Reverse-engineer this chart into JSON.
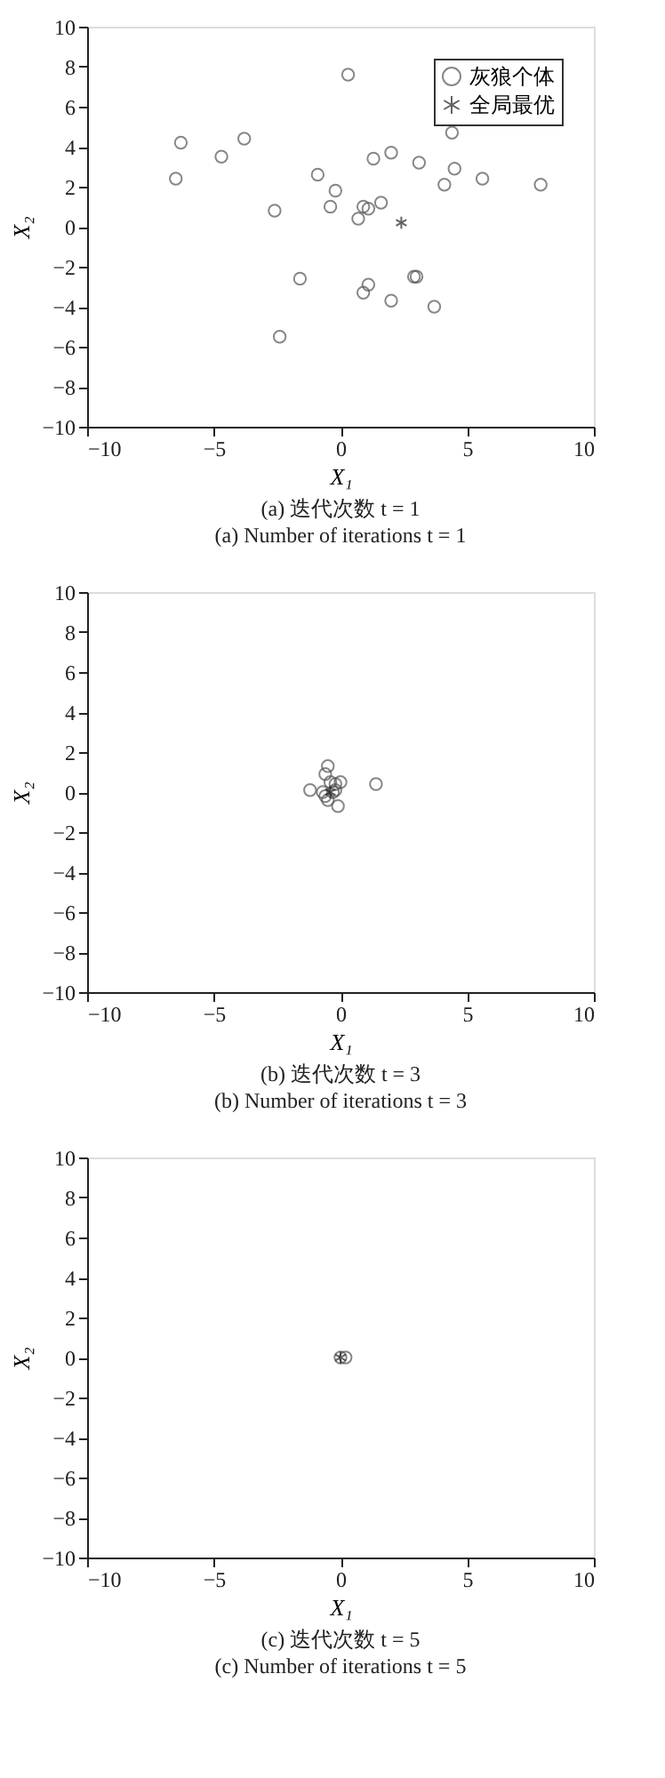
{
  "chart_data": [
    {
      "type": "scatter",
      "xlabel": "X₁",
      "ylabel": "X₂",
      "xlim": [
        -10,
        10
      ],
      "ylim": [
        -10,
        10
      ],
      "xticks": [
        -10,
        -5,
        0,
        5,
        10
      ],
      "yticks": [
        -10,
        -8,
        -6,
        -4,
        -2,
        0,
        2,
        4,
        6,
        8,
        10
      ],
      "grid": false,
      "legend": "top right",
      "annotations": [
        "(a) 迭代次数 t = 1",
        "(a) Number of iterations t = 1"
      ],
      "series": [
        {
          "name": "灰狼个体",
          "color": "#555555",
          "marker": "circle",
          "x": [
            0.3,
            -6.3,
            -3.8,
            -4.7,
            -6.5,
            -0.9,
            -0.2,
            -2.6,
            -0.4,
            0.7,
            0.9,
            1.1,
            1.6,
            1.3,
            2.0,
            3.1,
            4.4,
            4.5,
            4.1,
            5.6,
            7.9,
            -1.6,
            1.1,
            0.9,
            2.9,
            3.0,
            2.0,
            3.7,
            -2.4
          ],
          "values": [
            7.6,
            4.2,
            4.4,
            3.5,
            2.4,
            2.6,
            1.8,
            0.8,
            1.0,
            0.4,
            1.0,
            0.9,
            1.2,
            3.4,
            3.7,
            3.2,
            4.7,
            2.9,
            2.1,
            2.4,
            2.1,
            -2.6,
            -2.9,
            -3.3,
            -2.5,
            -2.5,
            -3.7,
            -4.0,
            -5.5
          ]
        },
        {
          "name": "全局最优",
          "color": "#222222",
          "marker": "cross",
          "x": [
            2.4
          ],
          "values": [
            0.2
          ]
        }
      ]
    },
    {
      "type": "scatter",
      "xlabel": "X₁",
      "ylabel": "X₂",
      "xlim": [
        -10,
        10
      ],
      "ylim": [
        -10,
        10
      ],
      "xticks": [
        -10,
        -5,
        0,
        5,
        10
      ],
      "yticks": [
        -10,
        -8,
        -6,
        -4,
        -2,
        0,
        2,
        4,
        6,
        8,
        10
      ],
      "grid": false,
      "legend": "top right",
      "annotations": [
        "(b) 迭代次数 t = 3",
        "(b) Number of iterations t = 3"
      ],
      "series": [
        {
          "name": "灰狼个体",
          "color": "#555555",
          "marker": "circle",
          "x": [
            -0.5,
            -0.6,
            -1.2,
            0.0,
            -0.2,
            -0.4,
            -0.1,
            1.4,
            -0.5,
            -0.3,
            -0.6,
            -0.2,
            -0.7
          ],
          "values": [
            1.3,
            0.9,
            0.1,
            0.5,
            0.4,
            0.5,
            -0.7,
            0.4,
            -0.4,
            0.0,
            -0.2,
            0.1,
            0.0
          ]
        },
        {
          "name": "全局最优",
          "color": "#222222",
          "marker": "cross",
          "x": [
            -0.4
          ],
          "values": [
            0.0
          ]
        }
      ]
    },
    {
      "type": "scatter",
      "xlabel": "X₁",
      "ylabel": "X₂",
      "xlim": [
        -10,
        10
      ],
      "ylim": [
        -10,
        10
      ],
      "xticks": [
        -10,
        -5,
        0,
        5,
        10
      ],
      "yticks": [
        -10,
        -8,
        -6,
        -4,
        -2,
        0,
        2,
        4,
        6,
        8,
        10
      ],
      "grid": false,
      "legend": "top right",
      "annotations": [
        "(c) 迭代次数 t = 5",
        "(c) Number of iterations t = 5"
      ],
      "series": [
        {
          "name": "灰狼个体",
          "color": "#555555",
          "marker": "circle",
          "x": [
            0.0,
            0.2
          ],
          "values": [
            0.0,
            0.0
          ]
        },
        {
          "name": "全局最优",
          "color": "#222222",
          "marker": "cross",
          "x": [
            0.0
          ],
          "values": [
            0.0
          ]
        }
      ]
    }
  ]
}
